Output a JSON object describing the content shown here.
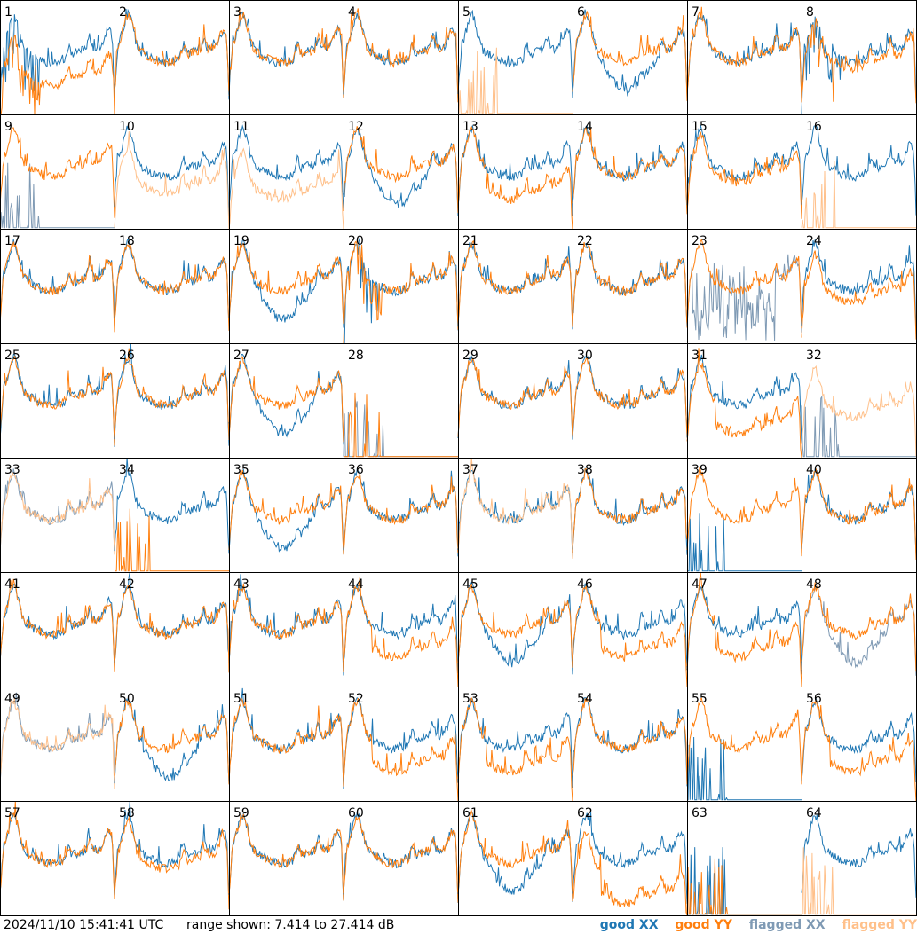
{
  "footer": {
    "timestamp": "2024/11/10 15:41:41 UTC",
    "range_text": "range shown: 7.414 to 27.414 dB"
  },
  "legend": {
    "good_xx": "good XX",
    "good_yy": "good YY",
    "flagged_xx": "flagged XX",
    "flagged_yy": "flagged YY"
  },
  "colors": {
    "good_xx": "#1f77b4",
    "good_yy": "#ff7f0e",
    "flagged_xx": "#7f9ab4",
    "flagged_yy": "#ffc08a",
    "grid": "#000000"
  },
  "chart_data": {
    "type": "line",
    "layout": "small-multiples 8x8",
    "ylim_db": [
      7.414,
      27.414
    ],
    "series_names": [
      "good XX",
      "good YY",
      "flagged XX",
      "flagged YY"
    ],
    "panels": [
      {
        "id": 1,
        "xx": "good",
        "yy": "good",
        "shape": "spiky",
        "yy_offset": -4
      },
      {
        "id": 2,
        "xx": "good",
        "yy": "good",
        "shape": "normal",
        "yy_offset": 0
      },
      {
        "id": 3,
        "xx": "good",
        "yy": "good",
        "shape": "normal",
        "yy_offset": 0
      },
      {
        "id": 4,
        "xx": "good",
        "yy": "good",
        "shape": "normal",
        "yy_offset": 0
      },
      {
        "id": 5,
        "xx": "good",
        "yy": "flagged",
        "shape": "yy_dead",
        "yy_offset": 0
      },
      {
        "id": 6,
        "xx": "good",
        "yy": "good",
        "shape": "xx_low",
        "yy_offset": 0
      },
      {
        "id": 7,
        "xx": "good",
        "yy": "good",
        "shape": "normal",
        "yy_offset": 0
      },
      {
        "id": 8,
        "xx": "good",
        "yy": "good",
        "shape": "spiky",
        "yy_offset": -1
      },
      {
        "id": 9,
        "xx": "flagged",
        "yy": "good",
        "shape": "xx_dead",
        "yy_offset": 0
      },
      {
        "id": 10,
        "xx": "good",
        "yy": "flagged",
        "shape": "normal",
        "yy_offset": -3
      },
      {
        "id": 11,
        "xx": "good",
        "yy": "flagged",
        "shape": "normal",
        "yy_offset": -4
      },
      {
        "id": 12,
        "xx": "good",
        "yy": "good",
        "shape": "xx_low",
        "yy_offset": 0
      },
      {
        "id": 13,
        "xx": "good",
        "yy": "good",
        "shape": "yy_low",
        "yy_offset": 0
      },
      {
        "id": 14,
        "xx": "good",
        "yy": "good",
        "shape": "normal",
        "yy_offset": 0
      },
      {
        "id": 15,
        "xx": "good",
        "yy": "good",
        "shape": "normal",
        "yy_offset": -1
      },
      {
        "id": 16,
        "xx": "good",
        "yy": "flagged",
        "shape": "yy_dead",
        "yy_offset": 0
      },
      {
        "id": 17,
        "xx": "good",
        "yy": "good",
        "shape": "normal",
        "yy_offset": 0
      },
      {
        "id": 18,
        "xx": "good",
        "yy": "good",
        "shape": "normal",
        "yy_offset": 0
      },
      {
        "id": 19,
        "xx": "good",
        "yy": "good",
        "shape": "xx_low",
        "yy_offset": 0
      },
      {
        "id": 20,
        "xx": "good",
        "yy": "good",
        "shape": "spiky",
        "yy_offset": 0
      },
      {
        "id": 21,
        "xx": "good",
        "yy": "good",
        "shape": "normal",
        "yy_offset": 0
      },
      {
        "id": 22,
        "xx": "good",
        "yy": "good",
        "shape": "normal",
        "yy_offset": 0
      },
      {
        "id": 23,
        "xx": "flagged",
        "yy": "good",
        "shape": "xx_noisy",
        "yy_offset": 0
      },
      {
        "id": 24,
        "xx": "good",
        "yy": "good",
        "shape": "normal",
        "yy_offset": -2
      },
      {
        "id": 25,
        "xx": "good",
        "yy": "good",
        "shape": "normal",
        "yy_offset": 0
      },
      {
        "id": 26,
        "xx": "good",
        "yy": "good",
        "shape": "normal",
        "yy_offset": 0
      },
      {
        "id": 27,
        "xx": "good",
        "yy": "good",
        "shape": "xx_low",
        "yy_offset": 0
      },
      {
        "id": 28,
        "xx": "flagged",
        "yy": "good",
        "shape": "both_dead",
        "yy_offset": 0
      },
      {
        "id": 29,
        "xx": "good",
        "yy": "good",
        "shape": "normal",
        "yy_offset": 0
      },
      {
        "id": 30,
        "xx": "good",
        "yy": "good",
        "shape": "normal",
        "yy_offset": 0
      },
      {
        "id": 31,
        "xx": "good",
        "yy": "good",
        "shape": "yy_low",
        "yy_offset": -1
      },
      {
        "id": 32,
        "xx": "flagged",
        "yy": "flagged",
        "shape": "xx_dead",
        "yy_offset": -2
      },
      {
        "id": 33,
        "xx": "flagged",
        "yy": "flagged",
        "shape": "normal",
        "yy_offset": 0
      },
      {
        "id": 34,
        "xx": "good",
        "yy": "good",
        "shape": "yy_dead",
        "yy_offset": 0
      },
      {
        "id": 35,
        "xx": "good",
        "yy": "good",
        "shape": "xx_low",
        "yy_offset": 0
      },
      {
        "id": 36,
        "xx": "good",
        "yy": "good",
        "shape": "normal",
        "yy_offset": 0
      },
      {
        "id": 37,
        "xx": "good",
        "yy": "flagged",
        "shape": "normal",
        "yy_offset": 0
      },
      {
        "id": 38,
        "xx": "good",
        "yy": "good",
        "shape": "normal",
        "yy_offset": 0
      },
      {
        "id": 39,
        "xx": "good",
        "yy": "good",
        "shape": "xx_dead",
        "yy_offset": 0
      },
      {
        "id": 40,
        "xx": "good",
        "yy": "good",
        "shape": "normal",
        "yy_offset": 0
      },
      {
        "id": 41,
        "xx": "good",
        "yy": "good",
        "shape": "normal",
        "yy_offset": 0
      },
      {
        "id": 42,
        "xx": "good",
        "yy": "good",
        "shape": "normal",
        "yy_offset": 0
      },
      {
        "id": 43,
        "xx": "good",
        "yy": "good",
        "shape": "normal",
        "yy_offset": 0
      },
      {
        "id": 44,
        "xx": "good",
        "yy": "good",
        "shape": "yy_low",
        "yy_offset": 0
      },
      {
        "id": 45,
        "xx": "good",
        "yy": "good",
        "shape": "xx_low",
        "yy_offset": 0
      },
      {
        "id": 46,
        "xx": "good",
        "yy": "good",
        "shape": "yy_low",
        "yy_offset": 0
      },
      {
        "id": 47,
        "xx": "good",
        "yy": "good",
        "shape": "yy_low",
        "yy_offset": 0
      },
      {
        "id": 48,
        "xx": "flagged",
        "yy": "good",
        "shape": "xx_low",
        "yy_offset": 0
      },
      {
        "id": 49,
        "xx": "flagged",
        "yy": "flagged",
        "shape": "normal",
        "yy_offset": 0
      },
      {
        "id": 50,
        "xx": "good",
        "yy": "good",
        "shape": "xx_low",
        "yy_offset": 0
      },
      {
        "id": 51,
        "xx": "good",
        "yy": "good",
        "shape": "normal",
        "yy_offset": 0
      },
      {
        "id": 52,
        "xx": "good",
        "yy": "good",
        "shape": "yy_low",
        "yy_offset": 0
      },
      {
        "id": 53,
        "xx": "good",
        "yy": "good",
        "shape": "yy_low",
        "yy_offset": 0
      },
      {
        "id": 54,
        "xx": "good",
        "yy": "good",
        "shape": "normal",
        "yy_offset": 0
      },
      {
        "id": 55,
        "xx": "good",
        "yy": "good",
        "shape": "xx_dead",
        "yy_offset": 0
      },
      {
        "id": 56,
        "xx": "good",
        "yy": "good",
        "shape": "yy_low",
        "yy_offset": 0
      },
      {
        "id": 57,
        "xx": "good",
        "yy": "good",
        "shape": "normal",
        "yy_offset": 0
      },
      {
        "id": 58,
        "xx": "good",
        "yy": "good",
        "shape": "normal",
        "yy_offset": -1
      },
      {
        "id": 59,
        "xx": "good",
        "yy": "good",
        "shape": "normal",
        "yy_offset": 0
      },
      {
        "id": 60,
        "xx": "good",
        "yy": "good",
        "shape": "normal",
        "yy_offset": 0
      },
      {
        "id": 61,
        "xx": "good",
        "yy": "good",
        "shape": "xx_low",
        "yy_offset": 0
      },
      {
        "id": 62,
        "xx": "good",
        "yy": "good",
        "shape": "yy_low",
        "yy_offset": -3
      },
      {
        "id": 63,
        "xx": "good",
        "yy": "good",
        "shape": "both_dead",
        "yy_offset": 0
      },
      {
        "id": 64,
        "xx": "good",
        "yy": "flagged",
        "shape": "yy_dead",
        "yy_offset": 0
      }
    ]
  }
}
